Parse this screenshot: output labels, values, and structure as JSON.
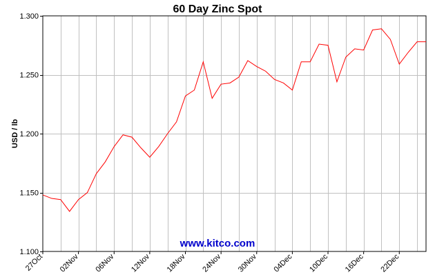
{
  "chart_data": {
    "type": "line",
    "title": "60 Day Zinc Spot",
    "xlabel": "",
    "ylabel": "USD / lb",
    "ylim": [
      1.1,
      1.3
    ],
    "y_ticks": [
      "1.100",
      "1.150",
      "1.200",
      "1.250",
      "1.300"
    ],
    "y_tick_values": [
      1.1,
      1.15,
      1.2,
      1.25,
      1.3
    ],
    "x_tick_labels": [
      "27Oct",
      "02Nov",
      "06Nov",
      "12Nov",
      "18Nov",
      "24Nov",
      "30Nov",
      "04Dec",
      "10Dec",
      "16Dec",
      "22Dec"
    ],
    "x_tick_positions": [
      0,
      4,
      8,
      12,
      16,
      20,
      24,
      28,
      32,
      36,
      40
    ],
    "x_count": 44,
    "grid": true,
    "line_color": "#ff0000",
    "grid_color": "#c0c0c0",
    "series": [
      {
        "values": [
          1.148,
          1.145,
          1.144,
          1.134,
          1.144,
          1.15,
          1.166,
          1.176,
          1.189,
          1.199,
          1.197,
          1.188,
          1.18,
          1.189,
          1.2,
          1.21,
          1.232,
          1.237,
          1.261,
          1.23,
          1.242,
          1.243,
          1.248,
          1.262,
          1.257,
          1.253,
          1.246,
          1.243,
          1.237,
          1.261,
          1.261,
          1.276,
          1.275,
          1.244,
          1.265,
          1.272,
          1.271,
          1.288,
          1.289,
          1.28,
          1.259,
          1.269,
          1.278,
          1.278
        ]
      }
    ]
  },
  "watermark": {
    "text": "www.kitco.com",
    "color": "#0000cc"
  }
}
